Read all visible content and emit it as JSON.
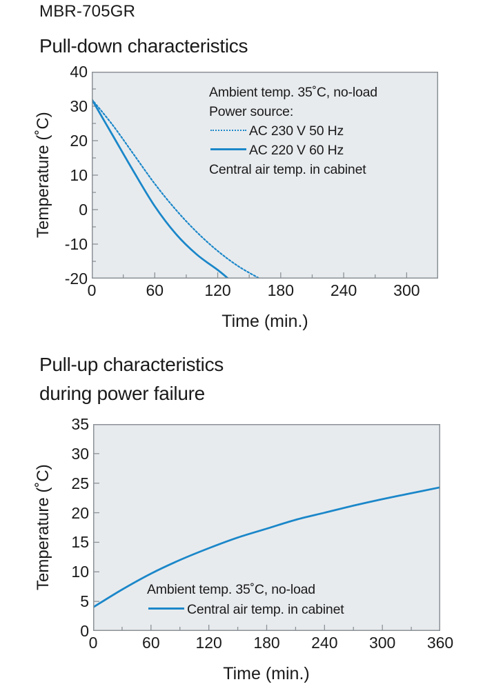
{
  "page": {
    "model": "MBR-705GR"
  },
  "colors": {
    "line": "#1b87c9",
    "plot_bg": "#e8ebee",
    "axis": "#8a9196",
    "tick": "#8a9196",
    "text": "#1a1a1a"
  },
  "chart_data": [
    {
      "type": "line",
      "title_lines": [
        "Pull-down characteristics"
      ],
      "xlabel": "Time (min.)",
      "ylabel": "Temperature (˚C)",
      "xlim": [
        0,
        330
      ],
      "ylim": [
        -20,
        40
      ],
      "x_major_ticks": [
        0,
        60,
        120,
        180,
        240,
        300
      ],
      "x_minor_step": 30,
      "y_major_step": 10,
      "y_minor_step": 5,
      "grid": false,
      "legend_position": "inside-top-right",
      "annotation_lines": [
        "Ambient temp. 35˚C, no-load",
        "Power source:"
      ],
      "legend": [
        {
          "label": "AC 230 V 50 Hz",
          "style": "dashed"
        },
        {
          "label": "AC 220 V 60 Hz",
          "style": "solid"
        }
      ],
      "legend_footnote": "Central air temp. in cabinet",
      "series": [
        {
          "name": "AC 230 V 50 Hz",
          "style": "dashed",
          "x": [
            0,
            20,
            40,
            60,
            80,
            100,
            120,
            140,
            160
          ],
          "y": [
            32,
            24.5,
            16,
            7.5,
            0,
            -6.5,
            -12,
            -16.5,
            -20
          ]
        },
        {
          "name": "AC 220 V 60 Hz",
          "style": "solid",
          "x": [
            0,
            20,
            40,
            60,
            80,
            100,
            120,
            130
          ],
          "y": [
            32,
            21.5,
            11,
            1,
            -7,
            -13,
            -17.5,
            -20
          ]
        }
      ]
    },
    {
      "type": "line",
      "title_lines": [
        "Pull-up characteristics",
        "during power failure"
      ],
      "xlabel": "Time (min.)",
      "ylabel": "Temperature (˚C)",
      "xlim": [
        0,
        360
      ],
      "ylim": [
        0,
        35
      ],
      "x_major_ticks": [
        0,
        60,
        120,
        180,
        240,
        300,
        360
      ],
      "x_minor_step": 30,
      "y_major_step": 5,
      "y_minor_step": 5,
      "grid": false,
      "legend_position": "inside-bottom",
      "annotation_lines": [
        "Ambient temp. 35˚C, no-load"
      ],
      "legend": [
        {
          "label": "Central air temp. in cabinet",
          "style": "solid"
        }
      ],
      "series": [
        {
          "name": "Central air temp. in cabinet",
          "style": "solid",
          "x": [
            0,
            30,
            60,
            90,
            120,
            150,
            180,
            210,
            240,
            270,
            300,
            330,
            360
          ],
          "y": [
            4,
            7,
            9.7,
            12,
            14,
            15.8,
            17.3,
            18.8,
            20,
            21.2,
            22.3,
            23.3,
            24.3
          ]
        }
      ]
    }
  ]
}
